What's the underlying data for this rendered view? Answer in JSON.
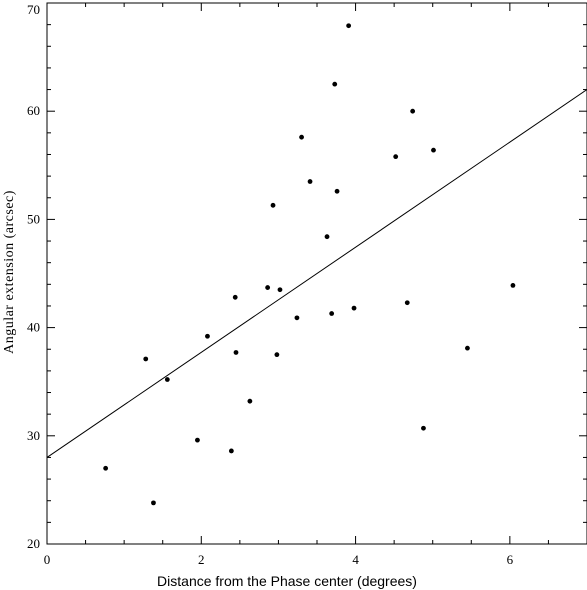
{
  "chart_data": {
    "type": "scatter",
    "title": "",
    "xlabel": "Distance from the Phase center (degrees)",
    "ylabel": "Angular extension (arcsec)",
    "xlim": [
      0,
      7
    ],
    "ylim": [
      20,
      70
    ],
    "xticks": [
      0,
      2,
      4,
      6
    ],
    "yticks": [
      20,
      30,
      40,
      50,
      60,
      70
    ],
    "x_minor_step": 0.5,
    "y_minor_step": 2,
    "grid": false,
    "point_color": "#000000",
    "points": [
      {
        "x": 0.76,
        "y": 27.0
      },
      {
        "x": 1.28,
        "y": 37.1
      },
      {
        "x": 1.38,
        "y": 23.8
      },
      {
        "x": 1.56,
        "y": 35.2
      },
      {
        "x": 1.95,
        "y": 29.6
      },
      {
        "x": 2.08,
        "y": 39.2
      },
      {
        "x": 2.39,
        "y": 28.6
      },
      {
        "x": 2.44,
        "y": 42.8
      },
      {
        "x": 2.45,
        "y": 37.7
      },
      {
        "x": 2.63,
        "y": 33.2
      },
      {
        "x": 2.86,
        "y": 43.7
      },
      {
        "x": 2.93,
        "y": 51.3
      },
      {
        "x": 2.98,
        "y": 37.5
      },
      {
        "x": 3.02,
        "y": 43.5
      },
      {
        "x": 3.24,
        "y": 40.9
      },
      {
        "x": 3.3,
        "y": 57.6
      },
      {
        "x": 3.41,
        "y": 53.5
      },
      {
        "x": 3.63,
        "y": 48.4
      },
      {
        "x": 3.69,
        "y": 41.3
      },
      {
        "x": 3.73,
        "y": 62.5
      },
      {
        "x": 3.76,
        "y": 52.6
      },
      {
        "x": 3.91,
        "y": 67.9
      },
      {
        "x": 3.98,
        "y": 41.8
      },
      {
        "x": 4.52,
        "y": 55.8
      },
      {
        "x": 4.67,
        "y": 42.3
      },
      {
        "x": 4.74,
        "y": 60.0
      },
      {
        "x": 4.88,
        "y": 30.7
      },
      {
        "x": 5.01,
        "y": 56.4
      },
      {
        "x": 5.45,
        "y": 38.1
      },
      {
        "x": 6.04,
        "y": 43.9
      }
    ],
    "fit_line": {
      "x": [
        0,
        7
      ],
      "y": [
        28.0,
        62.0
      ]
    }
  }
}
